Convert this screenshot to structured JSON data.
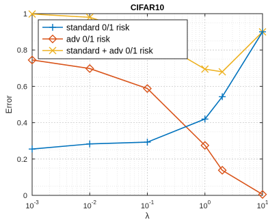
{
  "chart_data": {
    "type": "line",
    "title": "CIFAR10",
    "xlabel": "λ",
    "ylabel": "Error",
    "x_scale": "log",
    "xlim": [
      0.001,
      10
    ],
    "ylim": [
      0,
      1
    ],
    "grid": true,
    "minor_grid": true,
    "legend_position": "top-left",
    "x": [
      0.001,
      0.01,
      0.1,
      1,
      2,
      10
    ],
    "x_ticks": [
      0.001,
      0.01,
      0.1,
      1,
      10
    ],
    "x_tick_bases": [
      "10",
      "10",
      "10",
      "10",
      "10"
    ],
    "x_tick_exponents": [
      "-3",
      "-2",
      "-1",
      "0",
      "1"
    ],
    "y_ticks": [
      0,
      0.2,
      0.4,
      0.6,
      0.8,
      1
    ],
    "y_tick_labels": [
      "0",
      "0.2",
      "0.4",
      "0.6",
      "0.8",
      "1"
    ],
    "series": [
      {
        "name": "standard 0/1 risk",
        "color": "#0072BD",
        "marker": "plus",
        "values": [
          0.255,
          0.283,
          0.293,
          0.42,
          0.543,
          0.9
        ]
      },
      {
        "name": "adv 0/1 risk",
        "color": "#D95319",
        "marker": "diamond",
        "values": [
          0.745,
          0.698,
          0.588,
          0.275,
          0.138,
          0.005
        ]
      },
      {
        "name": "standard + adv 0/1 risk",
        "color": "#EDB120",
        "marker": "cross",
        "values": [
          0.998,
          0.98,
          0.88,
          0.695,
          0.68,
          0.9
        ]
      }
    ]
  }
}
